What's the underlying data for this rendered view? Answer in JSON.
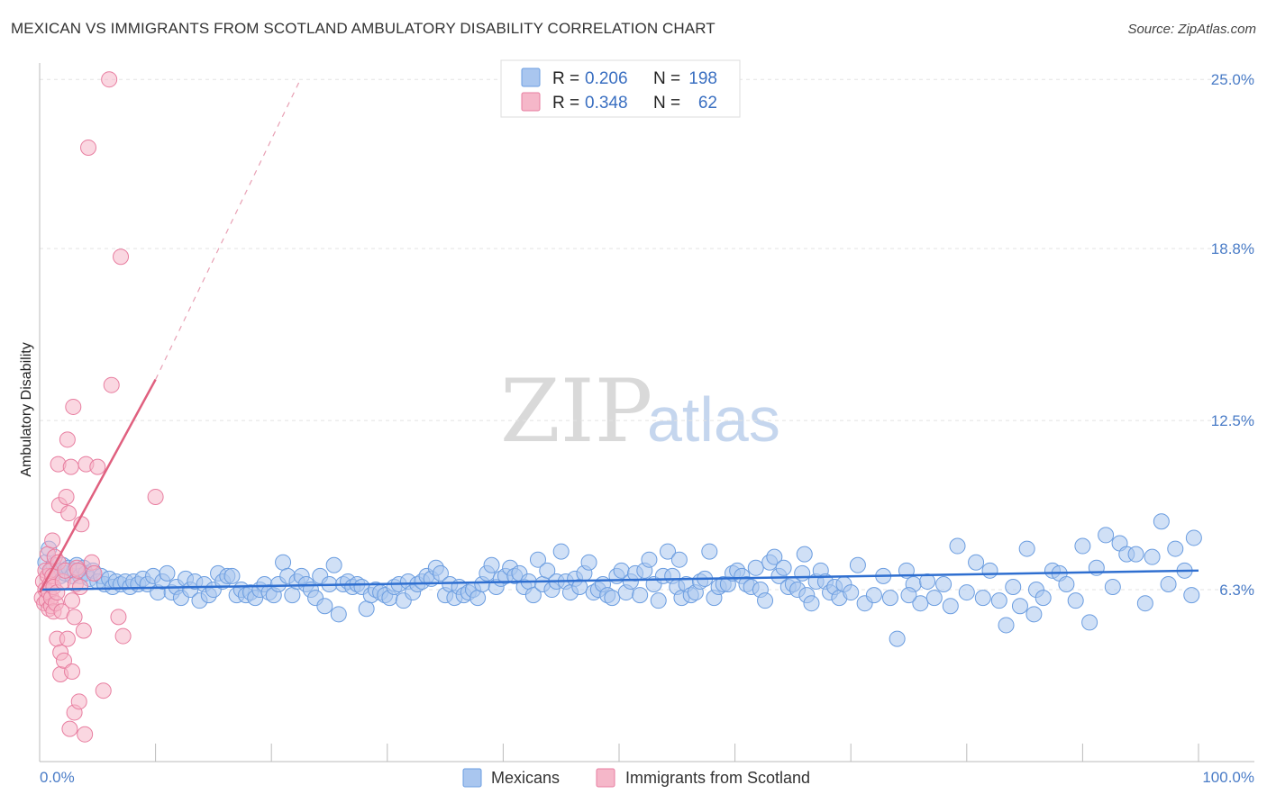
{
  "header": {
    "title": "MEXICAN VS IMMIGRANTS FROM SCOTLAND AMBULATORY DISABILITY CORRELATION CHART",
    "source": "Source: ZipAtlas.com"
  },
  "watermark": {
    "part1": "ZIP",
    "part2": "atlas"
  },
  "legend": {
    "r_label": "R =",
    "n_label": "N =",
    "rows": [
      {
        "r": "0.206",
        "n": "198",
        "color": "#a9c6ef"
      },
      {
        "r": "0.348",
        "n": "62",
        "color": "#f5b7c9"
      }
    ]
  },
  "bottom_legend": [
    {
      "label": "Mexicans",
      "color": "#a9c6ef"
    },
    {
      "label": "Immigrants from Scotland",
      "color": "#f5b7c9"
    }
  ],
  "chart_data": {
    "type": "scatter",
    "title": "MEXICAN VS IMMIGRANTS FROM SCOTLAND AMBULATORY DISABILITY CORRELATION CHART",
    "xlabel": "",
    "ylabel": "Ambulatory Disability",
    "xlim": [
      0,
      100
    ],
    "ylim": [
      0,
      25.6
    ],
    "x_tick_labels": [
      "0.0%",
      "100.0%"
    ],
    "y_ticks": [
      6.3,
      12.5,
      18.8,
      25.0
    ],
    "y_tick_labels": [
      "6.3%",
      "12.5%",
      "18.8%",
      "25.0%"
    ],
    "grid": "horizontal dashed",
    "series": [
      {
        "name": "Mexicans",
        "color": "#6b9de0",
        "fill": "#a9c6ef",
        "trend": {
          "x": [
            0,
            100
          ],
          "y": [
            6.3,
            7.0
          ],
          "style": "solid",
          "color": "#2f6fd0"
        },
        "points": [
          [
            0.5,
            7.3
          ],
          [
            0.8,
            7.8
          ],
          [
            1.0,
            7.0
          ],
          [
            1.2,
            7.2
          ],
          [
            1.5,
            7.0
          ],
          [
            1.8,
            6.8
          ],
          [
            2.0,
            7.2
          ],
          [
            2.2,
            6.9
          ],
          [
            2.5,
            7.1
          ],
          [
            2.8,
            6.8
          ],
          [
            3.0,
            7.0
          ],
          [
            3.2,
            7.2
          ],
          [
            3.5,
            6.8
          ],
          [
            3.8,
            7.1
          ],
          [
            4.0,
            6.9
          ],
          [
            4.3,
            6.7
          ],
          [
            4.6,
            7.0
          ],
          [
            5.0,
            6.6
          ],
          [
            5.3,
            6.8
          ],
          [
            5.6,
            6.5
          ],
          [
            6.0,
            6.7
          ],
          [
            6.3,
            6.4
          ],
          [
            6.6,
            6.6
          ],
          [
            7.0,
            6.5
          ],
          [
            7.4,
            6.6
          ],
          [
            7.8,
            6.4
          ],
          [
            8.1,
            6.6
          ],
          [
            8.5,
            6.5
          ],
          [
            8.9,
            6.7
          ],
          [
            9.3,
            6.5
          ],
          [
            9.8,
            6.8
          ],
          [
            10.2,
            6.2
          ],
          [
            10.6,
            6.6
          ],
          [
            11.0,
            6.9
          ],
          [
            11.4,
            6.2
          ],
          [
            11.8,
            6.4
          ],
          [
            12.2,
            6.0
          ],
          [
            12.6,
            6.7
          ],
          [
            13.0,
            6.3
          ],
          [
            13.4,
            6.6
          ],
          [
            13.8,
            5.9
          ],
          [
            14.2,
            6.5
          ],
          [
            14.6,
            6.1
          ],
          [
            15.0,
            6.3
          ],
          [
            15.4,
            6.9
          ],
          [
            15.8,
            6.6
          ],
          [
            16.2,
            6.8
          ],
          [
            16.6,
            6.8
          ],
          [
            17.0,
            6.1
          ],
          [
            17.4,
            6.3
          ],
          [
            17.8,
            6.1
          ],
          [
            18.2,
            6.2
          ],
          [
            18.6,
            6.0
          ],
          [
            19.0,
            6.3
          ],
          [
            19.4,
            6.5
          ],
          [
            19.8,
            6.2
          ],
          [
            20.2,
            6.1
          ],
          [
            20.6,
            6.5
          ],
          [
            21.0,
            7.3
          ],
          [
            21.4,
            6.8
          ],
          [
            21.8,
            6.1
          ],
          [
            22.2,
            6.6
          ],
          [
            22.6,
            6.8
          ],
          [
            23.0,
            6.5
          ],
          [
            23.4,
            6.3
          ],
          [
            23.8,
            6.0
          ],
          [
            24.2,
            6.8
          ],
          [
            24.6,
            5.7
          ],
          [
            25.0,
            6.5
          ],
          [
            25.4,
            7.2
          ],
          [
            25.8,
            5.4
          ],
          [
            26.2,
            6.5
          ],
          [
            26.6,
            6.6
          ],
          [
            27.0,
            6.4
          ],
          [
            27.4,
            6.5
          ],
          [
            27.8,
            6.4
          ],
          [
            28.2,
            5.6
          ],
          [
            28.6,
            6.1
          ],
          [
            29.0,
            6.3
          ],
          [
            29.4,
            6.2
          ],
          [
            29.8,
            6.1
          ],
          [
            30.2,
            6.0
          ],
          [
            30.6,
            6.4
          ],
          [
            31.0,
            6.5
          ],
          [
            31.4,
            5.9
          ],
          [
            31.8,
            6.6
          ],
          [
            32.2,
            6.2
          ],
          [
            32.6,
            6.5
          ],
          [
            33.0,
            6.6
          ],
          [
            33.4,
            6.8
          ],
          [
            33.8,
            6.7
          ],
          [
            34.2,
            7.1
          ],
          [
            34.6,
            6.9
          ],
          [
            35.0,
            6.1
          ],
          [
            35.4,
            6.5
          ],
          [
            35.8,
            6.0
          ],
          [
            36.2,
            6.4
          ],
          [
            36.6,
            6.1
          ],
          [
            37.0,
            6.2
          ],
          [
            37.4,
            6.3
          ],
          [
            37.8,
            6.0
          ],
          [
            38.2,
            6.5
          ],
          [
            38.6,
            6.9
          ],
          [
            39.0,
            7.2
          ],
          [
            39.4,
            6.4
          ],
          [
            39.8,
            6.7
          ],
          [
            40.2,
            6.8
          ],
          [
            40.6,
            7.1
          ],
          [
            41.0,
            6.8
          ],
          [
            41.4,
            6.9
          ],
          [
            41.8,
            6.4
          ],
          [
            42.2,
            6.6
          ],
          [
            42.6,
            6.1
          ],
          [
            43.0,
            7.4
          ],
          [
            43.4,
            6.5
          ],
          [
            43.8,
            7.0
          ],
          [
            44.2,
            6.3
          ],
          [
            44.6,
            6.6
          ],
          [
            45.0,
            7.7
          ],
          [
            45.4,
            6.6
          ],
          [
            45.8,
            6.2
          ],
          [
            46.2,
            6.7
          ],
          [
            46.6,
            6.4
          ],
          [
            47.0,
            6.9
          ],
          [
            47.4,
            7.3
          ],
          [
            47.8,
            6.2
          ],
          [
            48.2,
            6.3
          ],
          [
            48.6,
            6.5
          ],
          [
            49.0,
            6.1
          ],
          [
            49.4,
            6.0
          ],
          [
            49.8,
            6.8
          ],
          [
            50.2,
            7.0
          ],
          [
            50.6,
            6.2
          ],
          [
            51.0,
            6.6
          ],
          [
            51.4,
            6.9
          ],
          [
            51.8,
            6.1
          ],
          [
            52.2,
            7.0
          ],
          [
            52.6,
            7.4
          ],
          [
            53.0,
            6.5
          ],
          [
            53.4,
            5.9
          ],
          [
            53.8,
            6.8
          ],
          [
            54.2,
            7.7
          ],
          [
            54.6,
            6.8
          ],
          [
            55.0,
            6.4
          ],
          [
            55.4,
            6.0
          ],
          [
            55.8,
            6.5
          ],
          [
            56.2,
            6.1
          ],
          [
            56.6,
            6.2
          ],
          [
            57.0,
            6.6
          ],
          [
            57.4,
            6.7
          ],
          [
            57.8,
            7.7
          ],
          [
            58.2,
            6.0
          ],
          [
            58.6,
            6.4
          ],
          [
            59.0,
            6.5
          ],
          [
            59.4,
            6.5
          ],
          [
            59.8,
            6.9
          ],
          [
            60.2,
            7.0
          ],
          [
            60.6,
            6.8
          ],
          [
            61.0,
            6.5
          ],
          [
            61.4,
            6.4
          ],
          [
            61.8,
            7.1
          ],
          [
            62.2,
            6.3
          ],
          [
            62.6,
            5.9
          ],
          [
            63.0,
            7.3
          ],
          [
            63.4,
            7.5
          ],
          [
            63.8,
            6.8
          ],
          [
            64.2,
            7.1
          ],
          [
            64.6,
            6.4
          ],
          [
            65.0,
            6.5
          ],
          [
            65.4,
            6.3
          ],
          [
            65.8,
            6.9
          ],
          [
            66.2,
            6.1
          ],
          [
            66.6,
            5.8
          ],
          [
            67.0,
            6.6
          ],
          [
            67.4,
            7.0
          ],
          [
            67.8,
            6.6
          ],
          [
            68.2,
            6.2
          ],
          [
            68.6,
            6.4
          ],
          [
            69.0,
            6.0
          ],
          [
            69.4,
            6.5
          ],
          [
            70.0,
            6.2
          ],
          [
            70.6,
            7.2
          ],
          [
            71.2,
            5.8
          ],
          [
            72.0,
            6.1
          ],
          [
            72.8,
            6.8
          ],
          [
            73.4,
            6.0
          ],
          [
            74.0,
            4.5
          ],
          [
            74.8,
            7.0
          ],
          [
            75.4,
            6.5
          ],
          [
            76.0,
            5.8
          ],
          [
            76.6,
            6.6
          ],
          [
            77.2,
            6.0
          ],
          [
            78.0,
            6.5
          ],
          [
            78.6,
            5.7
          ],
          [
            79.2,
            7.9
          ],
          [
            80.0,
            6.2
          ],
          [
            80.8,
            7.3
          ],
          [
            81.4,
            6.0
          ],
          [
            82.0,
            7.0
          ],
          [
            82.8,
            5.9
          ],
          [
            83.4,
            5.0
          ],
          [
            84.0,
            6.4
          ],
          [
            84.6,
            5.7
          ],
          [
            85.2,
            7.8
          ],
          [
            86.0,
            6.3
          ],
          [
            86.6,
            6.0
          ],
          [
            87.4,
            7.0
          ],
          [
            88.0,
            6.9
          ],
          [
            88.6,
            6.5
          ],
          [
            89.4,
            5.9
          ],
          [
            90.0,
            7.9
          ],
          [
            90.6,
            5.1
          ],
          [
            91.2,
            7.1
          ],
          [
            92.0,
            8.3
          ],
          [
            92.6,
            6.4
          ],
          [
            93.2,
            8.0
          ],
          [
            93.8,
            7.6
          ],
          [
            94.6,
            7.6
          ],
          [
            95.4,
            5.8
          ],
          [
            96.0,
            7.5
          ],
          [
            96.8,
            8.8
          ],
          [
            97.4,
            6.5
          ],
          [
            98.0,
            7.8
          ],
          [
            98.8,
            7.0
          ],
          [
            99.4,
            6.1
          ],
          [
            99.6,
            8.2
          ],
          [
            55.2,
            7.4
          ],
          [
            66.0,
            7.6
          ],
          [
            75.0,
            6.1
          ],
          [
            85.8,
            5.4
          ]
        ]
      },
      {
        "name": "Immigrants from Scotland",
        "color": "#e87ea0",
        "fill": "#f5b7c9",
        "trend": {
          "x": [
            0,
            10
          ],
          "y": [
            6.2,
            14.0
          ],
          "extend_to": [
            22.5,
            25.0
          ],
          "style": "solid+dashed",
          "color": "#e0607f"
        },
        "points": [
          [
            0.2,
            6.0
          ],
          [
            0.3,
            6.6
          ],
          [
            0.4,
            5.8
          ],
          [
            0.5,
            7.0
          ],
          [
            0.5,
            6.3
          ],
          [
            0.6,
            5.9
          ],
          [
            0.7,
            6.8
          ],
          [
            0.7,
            7.6
          ],
          [
            0.8,
            6.2
          ],
          [
            0.8,
            5.6
          ],
          [
            0.9,
            6.5
          ],
          [
            0.9,
            7.0
          ],
          [
            1.0,
            5.7
          ],
          [
            1.0,
            6.0
          ],
          [
            1.1,
            6.8
          ],
          [
            1.1,
            8.1
          ],
          [
            1.2,
            6.4
          ],
          [
            1.2,
            5.5
          ],
          [
            1.3,
            7.5
          ],
          [
            1.4,
            5.8
          ],
          [
            1.5,
            6.2
          ],
          [
            1.5,
            4.5
          ],
          [
            1.6,
            7.3
          ],
          [
            1.6,
            10.9
          ],
          [
            1.7,
            9.4
          ],
          [
            1.8,
            3.2
          ],
          [
            1.8,
            4.0
          ],
          [
            1.9,
            5.5
          ],
          [
            2.0,
            6.6
          ],
          [
            2.1,
            3.7
          ],
          [
            2.2,
            7.0
          ],
          [
            2.3,
            9.7
          ],
          [
            2.4,
            11.8
          ],
          [
            2.4,
            4.5
          ],
          [
            2.5,
            9.1
          ],
          [
            2.6,
            1.2
          ],
          [
            2.7,
            10.8
          ],
          [
            2.8,
            5.9
          ],
          [
            2.8,
            3.3
          ],
          [
            2.9,
            13.0
          ],
          [
            3.0,
            1.8
          ],
          [
            3.0,
            5.3
          ],
          [
            3.1,
            6.5
          ],
          [
            3.2,
            7.1
          ],
          [
            3.3,
            7.0
          ],
          [
            3.4,
            2.2
          ],
          [
            3.5,
            6.4
          ],
          [
            3.6,
            8.7
          ],
          [
            3.8,
            4.8
          ],
          [
            3.9,
            1.0
          ],
          [
            4.0,
            10.9
          ],
          [
            4.2,
            22.5
          ],
          [
            4.5,
            7.3
          ],
          [
            4.7,
            6.9
          ],
          [
            5.0,
            10.8
          ],
          [
            5.5,
            2.6
          ],
          [
            6.0,
            25.0
          ],
          [
            6.2,
            13.8
          ],
          [
            6.8,
            5.3
          ],
          [
            7.0,
            18.5
          ],
          [
            7.2,
            4.6
          ],
          [
            10.0,
            9.7
          ]
        ]
      }
    ]
  }
}
